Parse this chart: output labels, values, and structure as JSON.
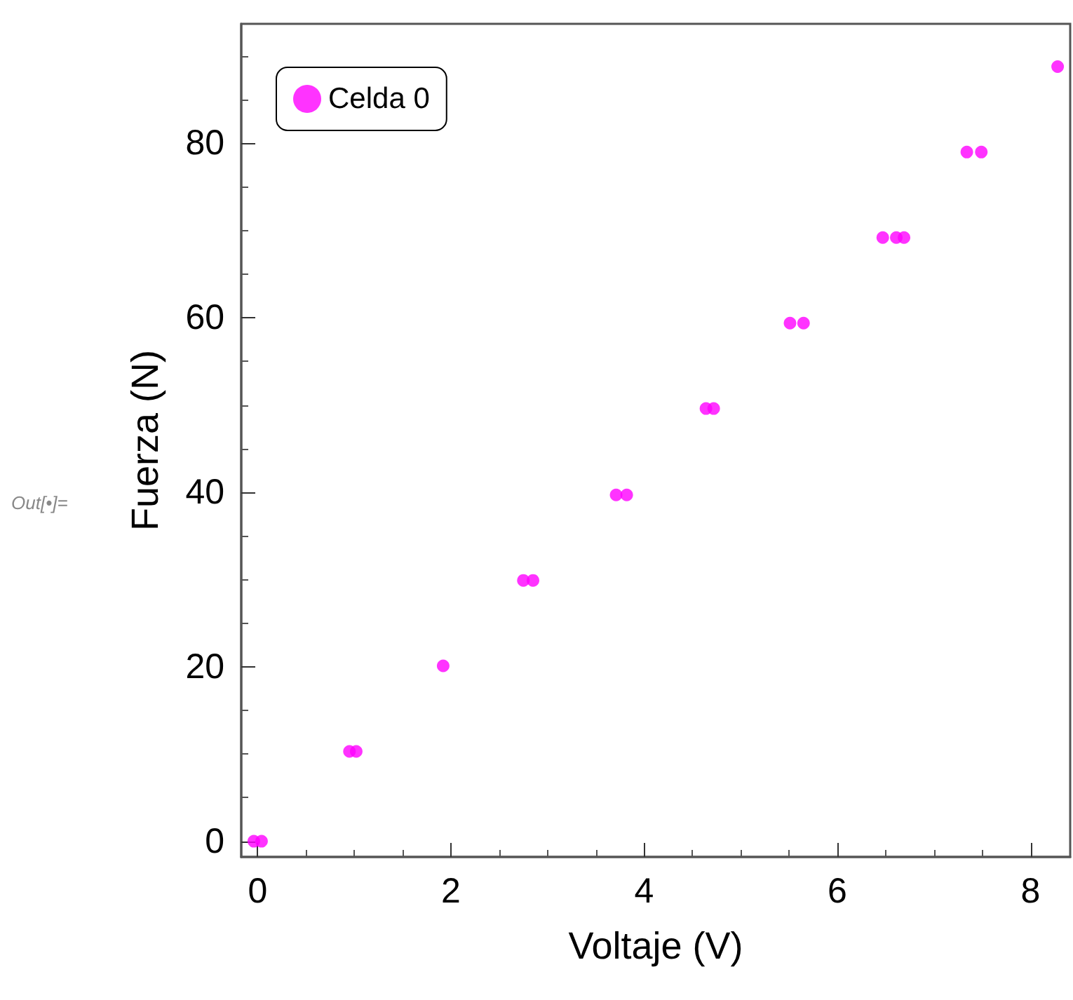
{
  "chart_data": {
    "type": "scatter",
    "xlabel": "Voltaje (V)",
    "ylabel": "Fuerza (N)",
    "annotations": [
      "Out[•]="
    ],
    "series": [
      {
        "name": "Celda 0",
        "color": "#ff00ff",
        "x": [
          -0.04,
          0.04,
          0.95,
          1.02,
          1.92,
          2.75,
          2.85,
          3.71,
          3.82,
          4.64,
          4.72,
          5.51,
          5.65,
          6.47,
          6.61,
          6.69,
          7.34,
          7.49,
          8.28
        ],
        "values": [
          0,
          0,
          10.3,
          10.3,
          20.1,
          29.9,
          29.9,
          39.7,
          39.7,
          49.6,
          49.6,
          59.4,
          59.4,
          69.2,
          69.2,
          69.2,
          79.0,
          79.0,
          88.8
        ]
      }
    ],
    "xlim": [
      -0.17,
      8.41
    ],
    "xticks": [
      0,
      2,
      4,
      6,
      8
    ],
    "ylim": [
      -1.8,
      93.7
    ],
    "yticks": [
      0,
      20,
      40,
      60,
      80
    ],
    "grid": false,
    "legend": "top left",
    "marker": "circle"
  }
}
